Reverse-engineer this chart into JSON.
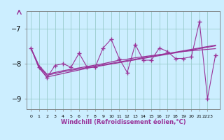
{
  "xlabel": "Windchill (Refroidissement éolien,°C)",
  "bg_color": "#cceeff",
  "line_color": "#993399",
  "grid_color": "#99cccc",
  "x": [
    0,
    1,
    2,
    3,
    4,
    5,
    6,
    7,
    8,
    9,
    10,
    11,
    12,
    13,
    14,
    15,
    16,
    17,
    18,
    19,
    20,
    21,
    22,
    23
  ],
  "y_zigzag": [
    -7.55,
    -8.1,
    -8.4,
    -8.05,
    -8.0,
    -8.1,
    -7.7,
    -8.1,
    -8.1,
    -7.55,
    -7.3,
    -7.85,
    -8.25,
    -7.45,
    -7.9,
    -7.9,
    -7.55,
    -7.65,
    -7.85,
    -7.85,
    -7.8,
    -6.8,
    -9.0,
    -7.75
  ],
  "y_line1": [
    -7.55,
    -8.05,
    -8.3,
    -8.25,
    -8.2,
    -8.16,
    -8.12,
    -8.08,
    -8.04,
    -8.0,
    -7.95,
    -7.9,
    -7.87,
    -7.83,
    -7.8,
    -7.77,
    -7.74,
    -7.71,
    -7.68,
    -7.65,
    -7.63,
    -7.61,
    -7.59,
    -7.57
  ],
  "y_line2": [
    -7.55,
    -8.08,
    -8.33,
    -8.28,
    -8.23,
    -8.19,
    -8.15,
    -8.11,
    -8.07,
    -8.03,
    -7.99,
    -7.95,
    -7.91,
    -7.87,
    -7.83,
    -7.79,
    -7.75,
    -7.71,
    -7.67,
    -7.63,
    -7.59,
    -7.55,
    -7.51,
    -7.47
  ],
  "y_line3": [
    -7.55,
    -8.12,
    -8.38,
    -8.33,
    -8.28,
    -8.23,
    -8.18,
    -8.13,
    -8.09,
    -8.05,
    -8.01,
    -7.97,
    -7.93,
    -7.89,
    -7.85,
    -7.81,
    -7.77,
    -7.73,
    -7.69,
    -7.65,
    -7.61,
    -7.57,
    -7.53,
    -7.49
  ],
  "ylim": [
    -9.3,
    -6.5
  ],
  "xlim": [
    -0.5,
    23.5
  ],
  "yticks": [
    -9,
    -8,
    -7
  ],
  "xtick_labels": [
    "0",
    "1",
    "2",
    "3",
    "4",
    "5",
    "6",
    "7",
    "8",
    "9",
    "10",
    "11",
    "12",
    "13",
    "14",
    "15",
    "16",
    "17",
    "18",
    "19",
    "20",
    "21",
    "2223",
    ""
  ]
}
